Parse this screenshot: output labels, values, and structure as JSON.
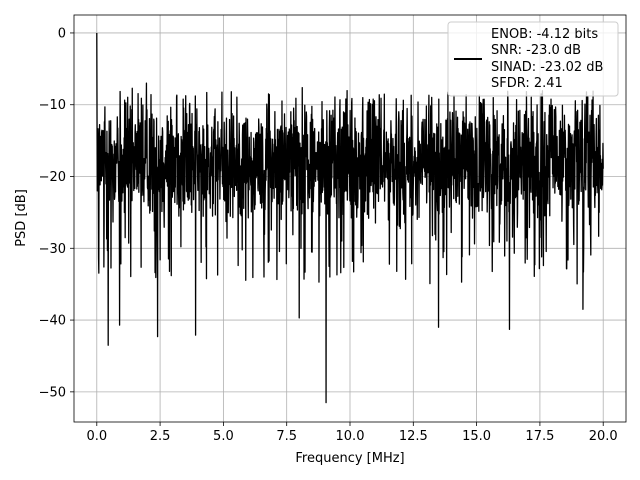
{
  "chart_data": {
    "type": "line",
    "title": "",
    "xlabel": "Frequency [MHz]",
    "ylabel": "PSD [dB]",
    "xlim": [
      -0.9,
      20.9
    ],
    "ylim": [
      -54.2,
      2.5
    ],
    "xticks": [
      0.0,
      2.5,
      5.0,
      7.5,
      10.0,
      12.5,
      15.0,
      17.5,
      20.0
    ],
    "xtick_labels": [
      "0.0",
      "2.5",
      "5.0",
      "7.5",
      "10.0",
      "12.5",
      "15.0",
      "17.5",
      "20.0"
    ],
    "yticks": [
      0,
      -10,
      -20,
      -30,
      -40,
      -50
    ],
    "ytick_labels": [
      "0",
      "−10",
      "−20",
      "−30",
      "−40",
      "−50"
    ],
    "grid": true,
    "series": [
      {
        "color": "#000000",
        "x_start": 0.0,
        "x_end": 20.0,
        "points_count": 2000,
        "peak": {
          "x": 0.0,
          "y": 0.0
        },
        "notable_dips": [
          {
            "x": 0.45,
            "y": -43.5
          },
          {
            "x": 0.9,
            "y": -40.7
          },
          {
            "x": 2.4,
            "y": -42.3
          },
          {
            "x": 3.9,
            "y": -42.1
          },
          {
            "x": 7.99,
            "y": -39.7
          },
          {
            "x": 9.05,
            "y": -51.5
          },
          {
            "x": 13.5,
            "y": -41.0
          },
          {
            "x": 16.3,
            "y": -41.3
          },
          {
            "x": 19.2,
            "y": -38.5
          }
        ],
        "typical_range": [
          -30,
          -8
        ]
      }
    ],
    "legend": {
      "placement": "top-right",
      "lines": [
        "ENOB: -4.12 bits",
        "SNR: -23.0 dB",
        "SINAD: -23.02 dB",
        "SFDR: 2.41"
      ],
      "handle_color": "#000000"
    }
  }
}
